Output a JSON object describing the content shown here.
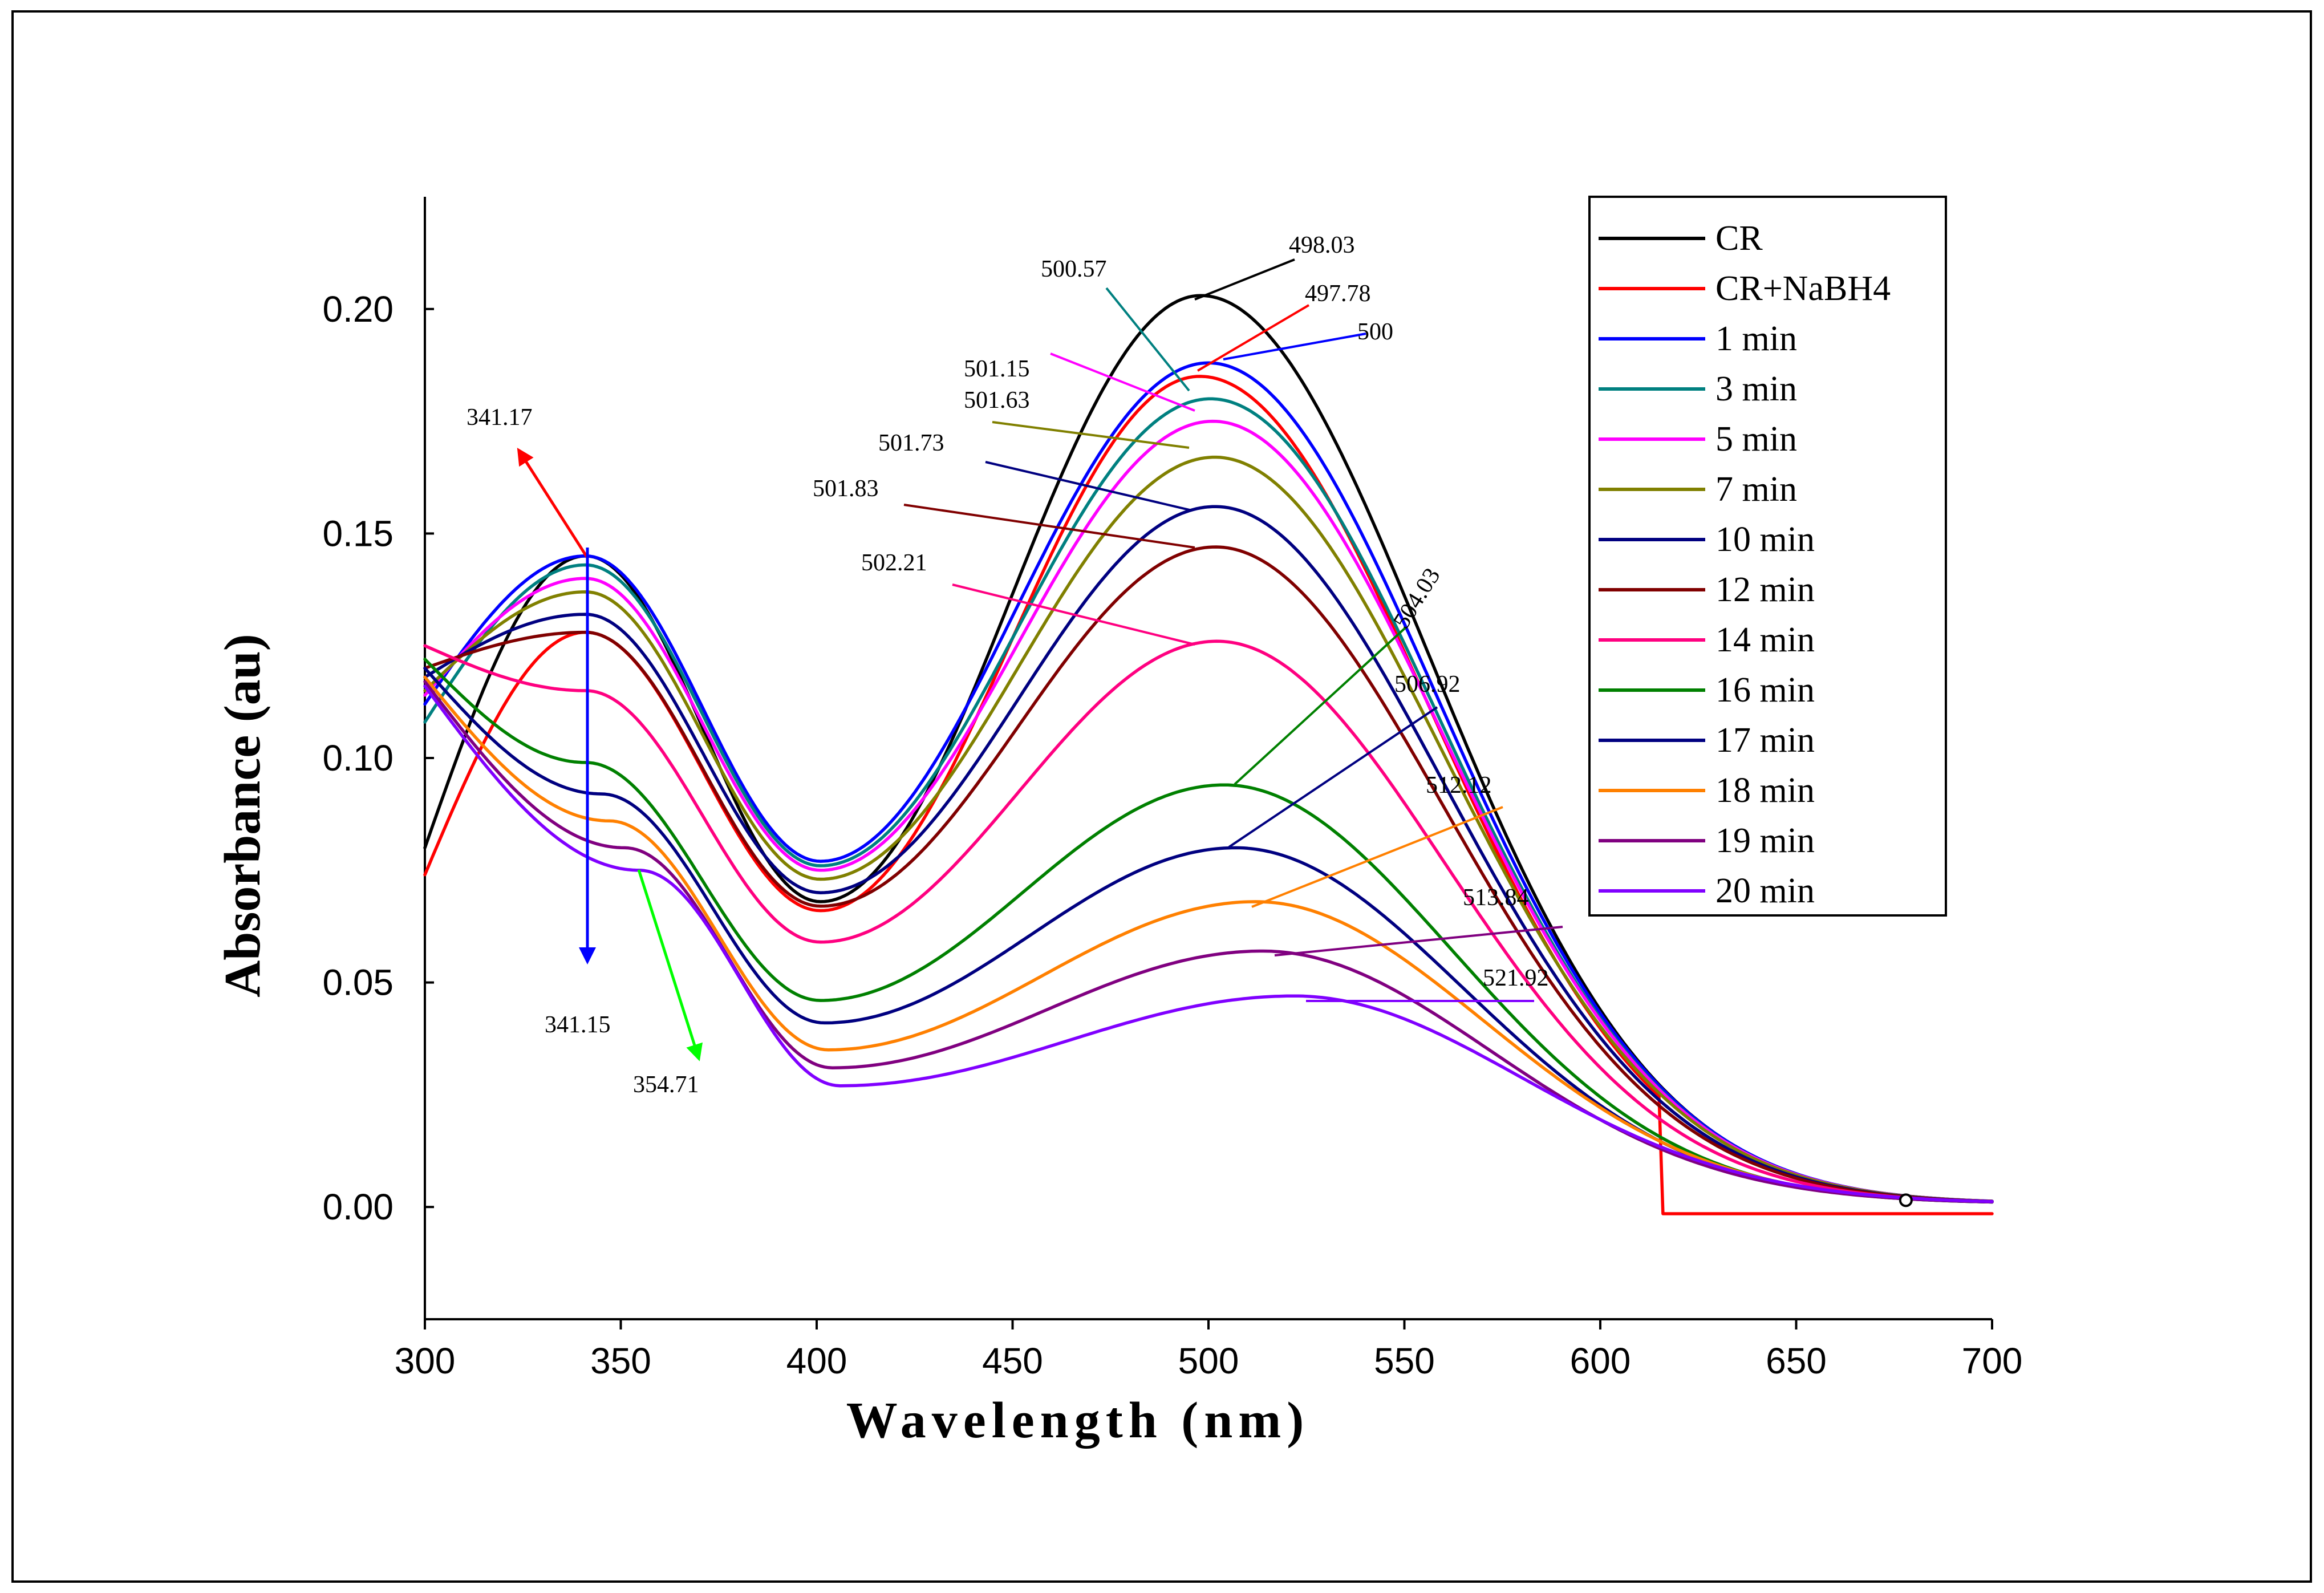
{
  "chart_data": {
    "type": "line",
    "title": "",
    "xlabel": "Wavelength (nm)",
    "ylabel": "Absorbance (au)",
    "xlim": [
      300,
      700
    ],
    "ylim": [
      -0.025,
      0.225
    ],
    "xticks": [
      300,
      350,
      400,
      450,
      500,
      550,
      600,
      650,
      700
    ],
    "yticks": [
      0.0,
      0.05,
      0.1,
      0.15,
      0.2
    ],
    "xtick_labels": [
      "300",
      "350",
      "400",
      "450",
      "500",
      "550",
      "600",
      "650",
      "700"
    ],
    "ytick_labels": [
      "0.00",
      "0.05",
      "0.10",
      "0.15",
      "0.20"
    ],
    "grid": false,
    "legend_position": "top-right",
    "series": [
      {
        "name": "CR",
        "color": "#000000",
        "start": 0.08,
        "peak1": [
          341,
          0.145
        ],
        "valley": [
          401,
          0.068
        ],
        "peak2": [
          498.03,
          0.203
        ]
      },
      {
        "name": "CR+NaBH4",
        "color": "#ff0000",
        "start": 0.074,
        "peak1": [
          341,
          0.128
        ],
        "valley": [
          401,
          0.066
        ],
        "peak2": [
          497.78,
          0.185
        ]
      },
      {
        "name": "1 min",
        "color": "#0000ff",
        "start": 0.112,
        "peak1": [
          341,
          0.145
        ],
        "valley": [
          401,
          0.077
        ],
        "peak2": [
          500.0,
          0.188
        ]
      },
      {
        "name": "3 min",
        "color": "#008080",
        "start": 0.108,
        "peak1": [
          341,
          0.143
        ],
        "valley": [
          401,
          0.076
        ],
        "peak2": [
          500.57,
          0.18
        ]
      },
      {
        "name": "5 min",
        "color": "#ff00ff",
        "start": 0.114,
        "peak1": [
          341,
          0.14
        ],
        "valley": [
          401,
          0.075
        ],
        "peak2": [
          501.15,
          0.175
        ]
      },
      {
        "name": "7 min",
        "color": "#808000",
        "start": 0.115,
        "peak1": [
          341,
          0.137
        ],
        "valley": [
          401,
          0.073
        ],
        "peak2": [
          501.63,
          0.167
        ]
      },
      {
        "name": "10 min",
        "color": "#000080",
        "start": 0.118,
        "peak1": [
          341,
          0.132
        ],
        "valley": [
          401,
          0.07
        ],
        "peak2": [
          501.73,
          0.156
        ]
      },
      {
        "name": "12 min",
        "color": "#800000",
        "start": 0.12,
        "peak1": [
          341,
          0.128
        ],
        "valley": [
          401,
          0.067
        ],
        "peak2": [
          501.83,
          0.147
        ]
      },
      {
        "name": "14 min",
        "color": "#ff0080",
        "start": 0.125,
        "peak1": [
          341,
          0.115
        ],
        "valley": [
          401,
          0.059
        ],
        "peak2": [
          502.21,
          0.126
        ]
      },
      {
        "name": "16 min",
        "color": "#008000",
        "start": 0.122,
        "peak1": [
          341,
          0.099
        ],
        "valley": [
          401,
          0.046
        ],
        "peak2": [
          504.03,
          0.094
        ]
      },
      {
        "name": "17 min",
        "color": "#000080",
        "start": 0.12,
        "peak1": [
          345,
          0.092
        ],
        "valley": [
          402,
          0.041
        ],
        "peak2": [
          506.92,
          0.08
        ]
      },
      {
        "name": "18 min",
        "color": "#ff8000",
        "start": 0.118,
        "peak1": [
          347,
          0.086
        ],
        "valley": [
          403,
          0.035
        ],
        "peak2": [
          512.12,
          0.068
        ]
      },
      {
        "name": "19 min",
        "color": "#800080",
        "start": 0.117,
        "peak1": [
          351,
          0.08
        ],
        "valley": [
          404,
          0.031
        ],
        "peak2": [
          513.84,
          0.057
        ]
      },
      {
        "name": "20 min",
        "color": "#8000ff",
        "start": 0.116,
        "peak1": [
          354.71,
          0.075
        ],
        "valley": [
          406,
          0.027
        ],
        "peak2": [
          521.92,
          0.047
        ]
      }
    ],
    "annotations": [
      {
        "text": "498.03",
        "color": "#000000"
      },
      {
        "text": "497.78",
        "color": "#ff0000"
      },
      {
        "text": "500",
        "color": "#0000ff"
      },
      {
        "text": "500.57",
        "color": "#008080"
      },
      {
        "text": "501.15",
        "color": "#ff00ff"
      },
      {
        "text": "501.63",
        "color": "#808000"
      },
      {
        "text": "501.73",
        "color": "#000080"
      },
      {
        "text": "501.83",
        "color": "#800000"
      },
      {
        "text": "502.21",
        "color": "#ff0080"
      },
      {
        "text": "504.03",
        "color": "#008000"
      },
      {
        "text": "506.92",
        "color": "#000080"
      },
      {
        "text": "512.12",
        "color": "#ff8000"
      },
      {
        "text": "513.84",
        "color": "#800080"
      },
      {
        "text": "521.92",
        "color": "#8000ff"
      },
      {
        "text": "341.17",
        "color": "#ff0000"
      },
      {
        "text": "341.15",
        "color": "#0000ff"
      },
      {
        "text": "354.71",
        "color": "#00ff00"
      }
    ]
  }
}
